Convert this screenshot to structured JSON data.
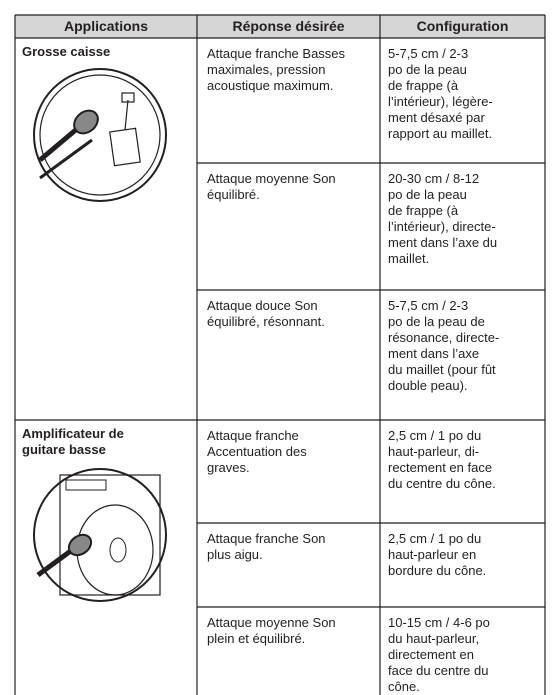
{
  "table": {
    "headers": [
      "Applications",
      "Réponse désirée",
      "Configuration"
    ],
    "groups": [
      {
        "application": [
          "Grosse caisse"
        ],
        "rows": [
          {
            "response": [
              "Attaque franche Basses",
              "maximales, pression",
              "acoustique maximum."
            ],
            "configuration": [
              "5-7,5 cm / 2-3",
              "po de la peau",
              "de frappe (à",
              "l’intérieur), légère-",
              "ment désaxé par",
              "rapport au maillet."
            ]
          },
          {
            "response": [
              "Attaque moyenne Son",
              "équilibré."
            ],
            "configuration": [
              "20-30 cm / 8-12",
              "po de la peau",
              "de frappe (à",
              "l’intérieur), directe-",
              "ment dans l’axe du",
              "maillet."
            ]
          },
          {
            "response": [
              "Attaque douce Son",
              "équilibré, résonnant."
            ],
            "configuration": [
              "5-7,5 cm / 2-3",
              "po de la peau de",
              "résonance, directe-",
              "ment dans l’axe",
              "du maillet (pour fût",
              "double peau)."
            ]
          }
        ]
      },
      {
        "application": [
          "Amplificateur de",
          "guitare basse"
        ],
        "rows": [
          {
            "response": [
              "Attaque franche",
              "Accentuation des",
              "graves."
            ],
            "configuration": [
              "2,5 cm / 1 po du",
              "haut-parleur, di-",
              "rectement en face",
              "du centre du cône."
            ]
          },
          {
            "response": [
              "Attaque franche Son",
              "plus aigu."
            ],
            "configuration": [
              "2,5 cm / 1 po du",
              "haut-parleur en",
              "bordure du cône."
            ]
          },
          {
            "response": [
              "Attaque moyenne Son",
              "plein et équilibré."
            ],
            "configuration": [
              "10-15 cm / 4-6 po",
              "du haut-parleur,",
              "directement en",
              "face du centre du",
              "cône."
            ]
          }
        ]
      }
    ]
  }
}
